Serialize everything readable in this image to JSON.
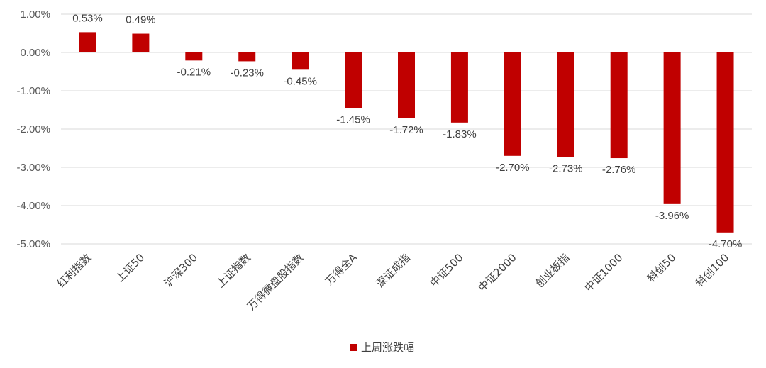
{
  "chart_data": {
    "type": "bar",
    "categories": [
      "红利指数",
      "上证50",
      "沪深300",
      "上证指数",
      "万得微盘股指数",
      "万得全A",
      "深证成指",
      "中证500",
      "中证2000",
      "创业板指",
      "中证1000",
      "科创50",
      "科创100"
    ],
    "series": [
      {
        "name": "上周涨跌幅",
        "values": [
          0.53,
          0.49,
          -0.21,
          -0.23,
          -0.45,
          -1.45,
          -1.72,
          -1.83,
          -2.7,
          -2.73,
          -2.76,
          -3.96,
          -4.7
        ],
        "labels": [
          "0.53%",
          "0.49%",
          "-0.21%",
          "-0.23%",
          "-0.45%",
          "-1.45%",
          "-1.72%",
          "-1.83%",
          "-2.70%",
          "-2.73%",
          "-2.76%",
          "-3.96%",
          "-4.70%"
        ],
        "color": "#C00000"
      }
    ],
    "ylim": [
      -5,
      1
    ],
    "yticks": [
      1,
      0,
      -1,
      -2,
      -3,
      -4,
      -5
    ],
    "ytick_labels": [
      "1.00%",
      "0.00%",
      "-1.00%",
      "-2.00%",
      "-3.00%",
      "-4.00%",
      "-5.00%"
    ],
    "grid": true,
    "legend_position": "bottom",
    "gridline_color": "#D9D9D9"
  }
}
